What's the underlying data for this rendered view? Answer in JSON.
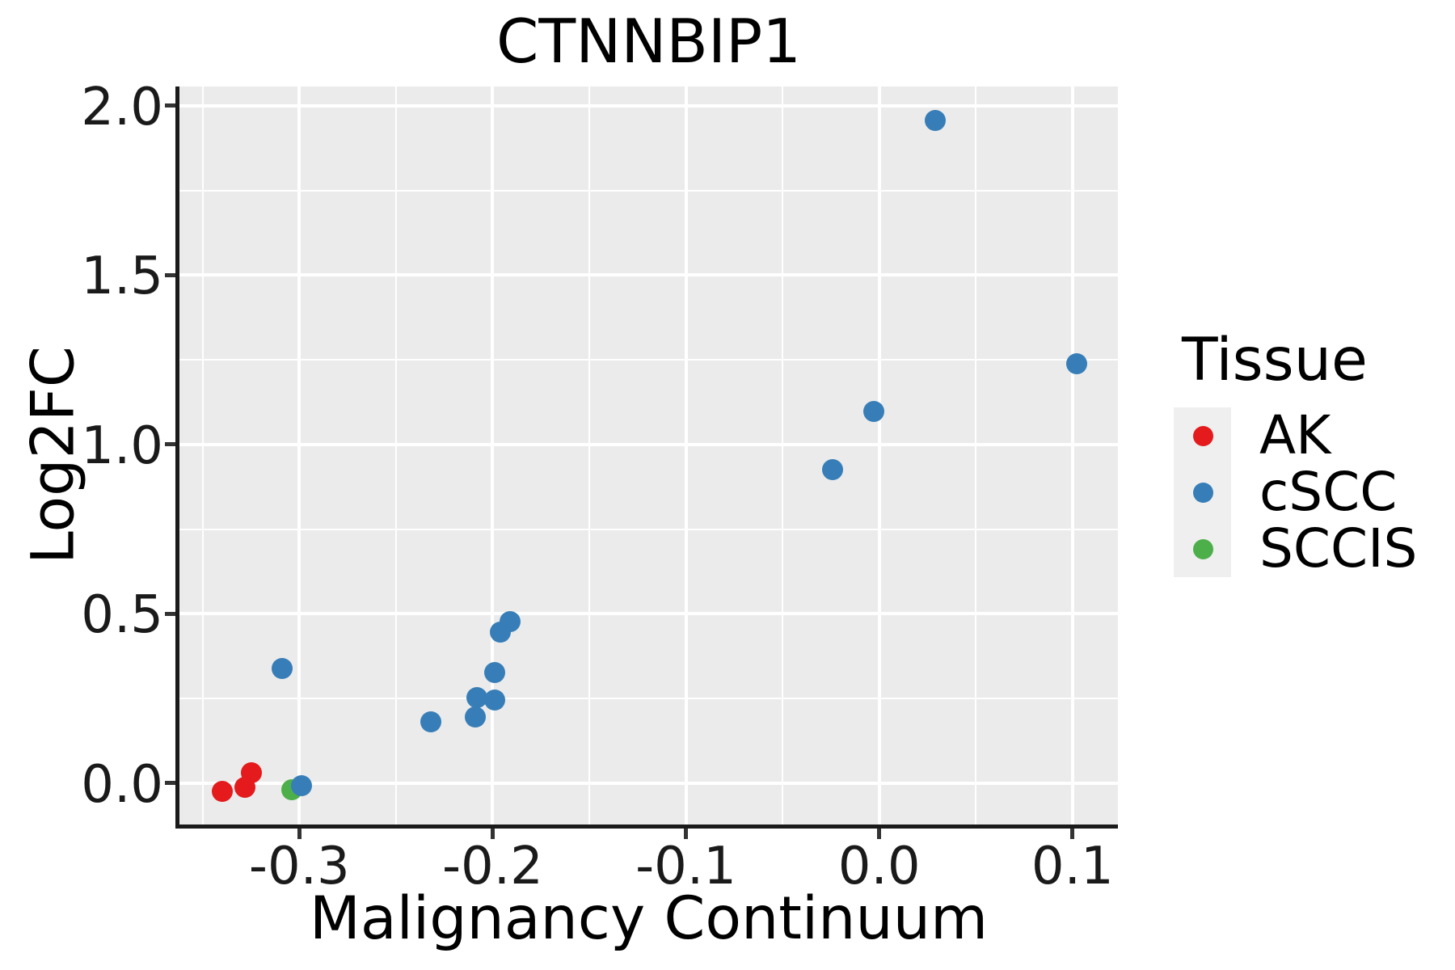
{
  "figure_title": "CTNNBIP1",
  "axes": {
    "x": {
      "label": "Malignancy Continuum",
      "tick_values": [
        -0.3,
        -0.2,
        -0.1,
        0.0,
        0.1
      ],
      "tick_labels": [
        "-0.3",
        "-0.2",
        "-0.1",
        "0.0",
        "0.1"
      ],
      "minor_tick_values": [
        -0.35,
        -0.25,
        -0.15,
        -0.05,
        0.05
      ],
      "lim": [
        -0.362,
        0.1235
      ]
    },
    "y": {
      "label": "Log2FC",
      "tick_values": [
        0.0,
        0.5,
        1.0,
        1.5,
        2.0
      ],
      "tick_labels": [
        "0.0",
        "0.5",
        "1.0",
        "1.5",
        "2.0"
      ],
      "minor_tick_values": [
        0.25,
        0.75,
        1.25,
        1.75
      ],
      "lim": [
        -0.122,
        2.057
      ]
    }
  },
  "legend": {
    "title": "Tissue",
    "items": [
      {
        "label": "AK",
        "color": "#E41A1C"
      },
      {
        "label": "cSCC",
        "color": "#377EB8"
      },
      {
        "label": "SCCIS",
        "color": "#4DAF4A"
      }
    ]
  },
  "colors": {
    "panel_background": "#EBEBEB",
    "gridline": "#FFFFFF",
    "legend_key_background": "#EFEFEF",
    "ak_red": "#E41A1C",
    "cscc_blue": "#377EB8",
    "sccis_green": "#4DAF4A"
  },
  "chart_data": {
    "type": "scatter",
    "title": "CTNNBIP1",
    "xlabel": "Malignancy Continuum",
    "ylabel": "Log2FC",
    "xlim": [
      -0.362,
      0.1235
    ],
    "ylim": [
      -0.122,
      2.057
    ],
    "grid": "on",
    "legend_position": "right",
    "legend_title": "Tissue",
    "series": [
      {
        "name": "AK",
        "color": "#E41A1C",
        "points": [
          [
            -0.34,
            -0.025
          ],
          [
            -0.328,
            -0.012
          ],
          [
            -0.325,
            0.031
          ]
        ]
      },
      {
        "name": "SCCIS",
        "color": "#4DAF4A",
        "points": [
          [
            -0.304,
            -0.019
          ]
        ]
      },
      {
        "name": "cSCC",
        "color": "#377EB8",
        "points": [
          [
            -0.309,
            0.339
          ],
          [
            -0.299,
            -0.007
          ],
          [
            -0.232,
            0.181
          ],
          [
            -0.209,
            0.196
          ],
          [
            -0.208,
            0.252
          ],
          [
            -0.199,
            0.246
          ],
          [
            -0.199,
            0.327
          ],
          [
            -0.196,
            0.446
          ],
          [
            -0.191,
            0.477
          ],
          [
            -0.024,
            0.926
          ],
          [
            -0.003,
            1.098
          ],
          [
            0.029,
            1.957
          ],
          [
            0.102,
            1.239
          ]
        ]
      }
    ]
  }
}
